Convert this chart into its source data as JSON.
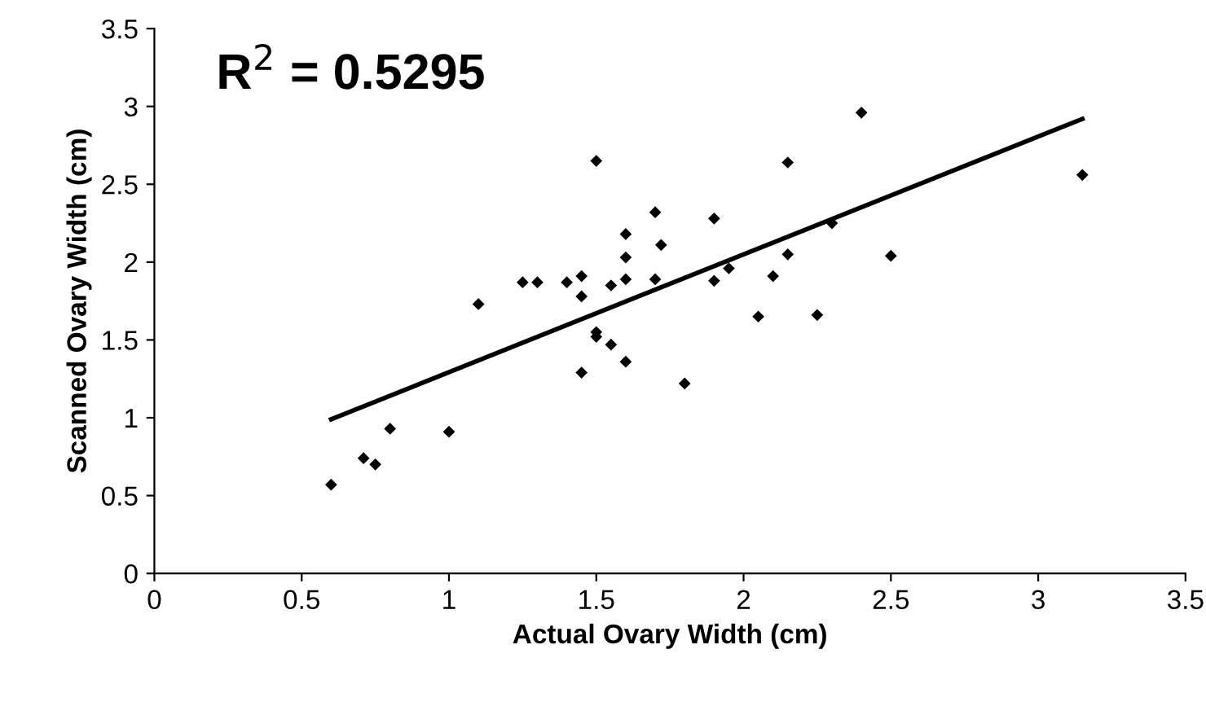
{
  "chart_data": {
    "type": "scatter",
    "xlabel": "Actual Ovary Width (cm)",
    "ylabel": "Scanned Ovary Width (cm)",
    "annotations": [
      "R$^{2}$ = 0.5295"
    ],
    "xlim": [
      0,
      3.5
    ],
    "ylim": [
      0,
      3.5
    ],
    "xticks": [
      0,
      0.5,
      1,
      1.5,
      2,
      2.5,
      3,
      3.5
    ],
    "yticks": [
      0,
      0.5,
      1,
      1.5,
      2,
      2.5,
      3,
      3.5
    ],
    "grid": false,
    "legend": false,
    "marker": "diamond",
    "series": [
      {
        "color": "#000000",
        "x": [
          0.6,
          0.71,
          0.75,
          0.8,
          1.0,
          1.1,
          1.25,
          1.3,
          1.4,
          1.45,
          1.45,
          1.45,
          1.5,
          1.5,
          1.5,
          1.55,
          1.55,
          1.6,
          1.6,
          1.6,
          1.6,
          1.7,
          1.72,
          1.7,
          1.8,
          1.9,
          1.9,
          1.95,
          2.05,
          2.1,
          2.15,
          2.15,
          2.25,
          2.3,
          2.4,
          2.5,
          3.15
        ],
        "values": [
          0.57,
          0.74,
          0.7,
          0.93,
          0.91,
          1.73,
          1.87,
          1.87,
          1.87,
          1.91,
          1.78,
          1.29,
          2.65,
          1.55,
          1.52,
          1.47,
          1.85,
          1.36,
          1.89,
          2.03,
          2.18,
          2.32,
          2.11,
          1.89,
          1.22,
          2.28,
          1.88,
          1.96,
          1.65,
          1.91,
          2.64,
          2.05,
          1.66,
          2.25,
          2.96,
          2.04,
          2.56
        ]
      },
      {
        "type": "line",
        "color": "#000000",
        "x": [
          0.6,
          3.15
        ],
        "values": [
          0.99,
          2.92
        ],
        "line_style": "solid",
        "marker": "none"
      }
    ]
  }
}
